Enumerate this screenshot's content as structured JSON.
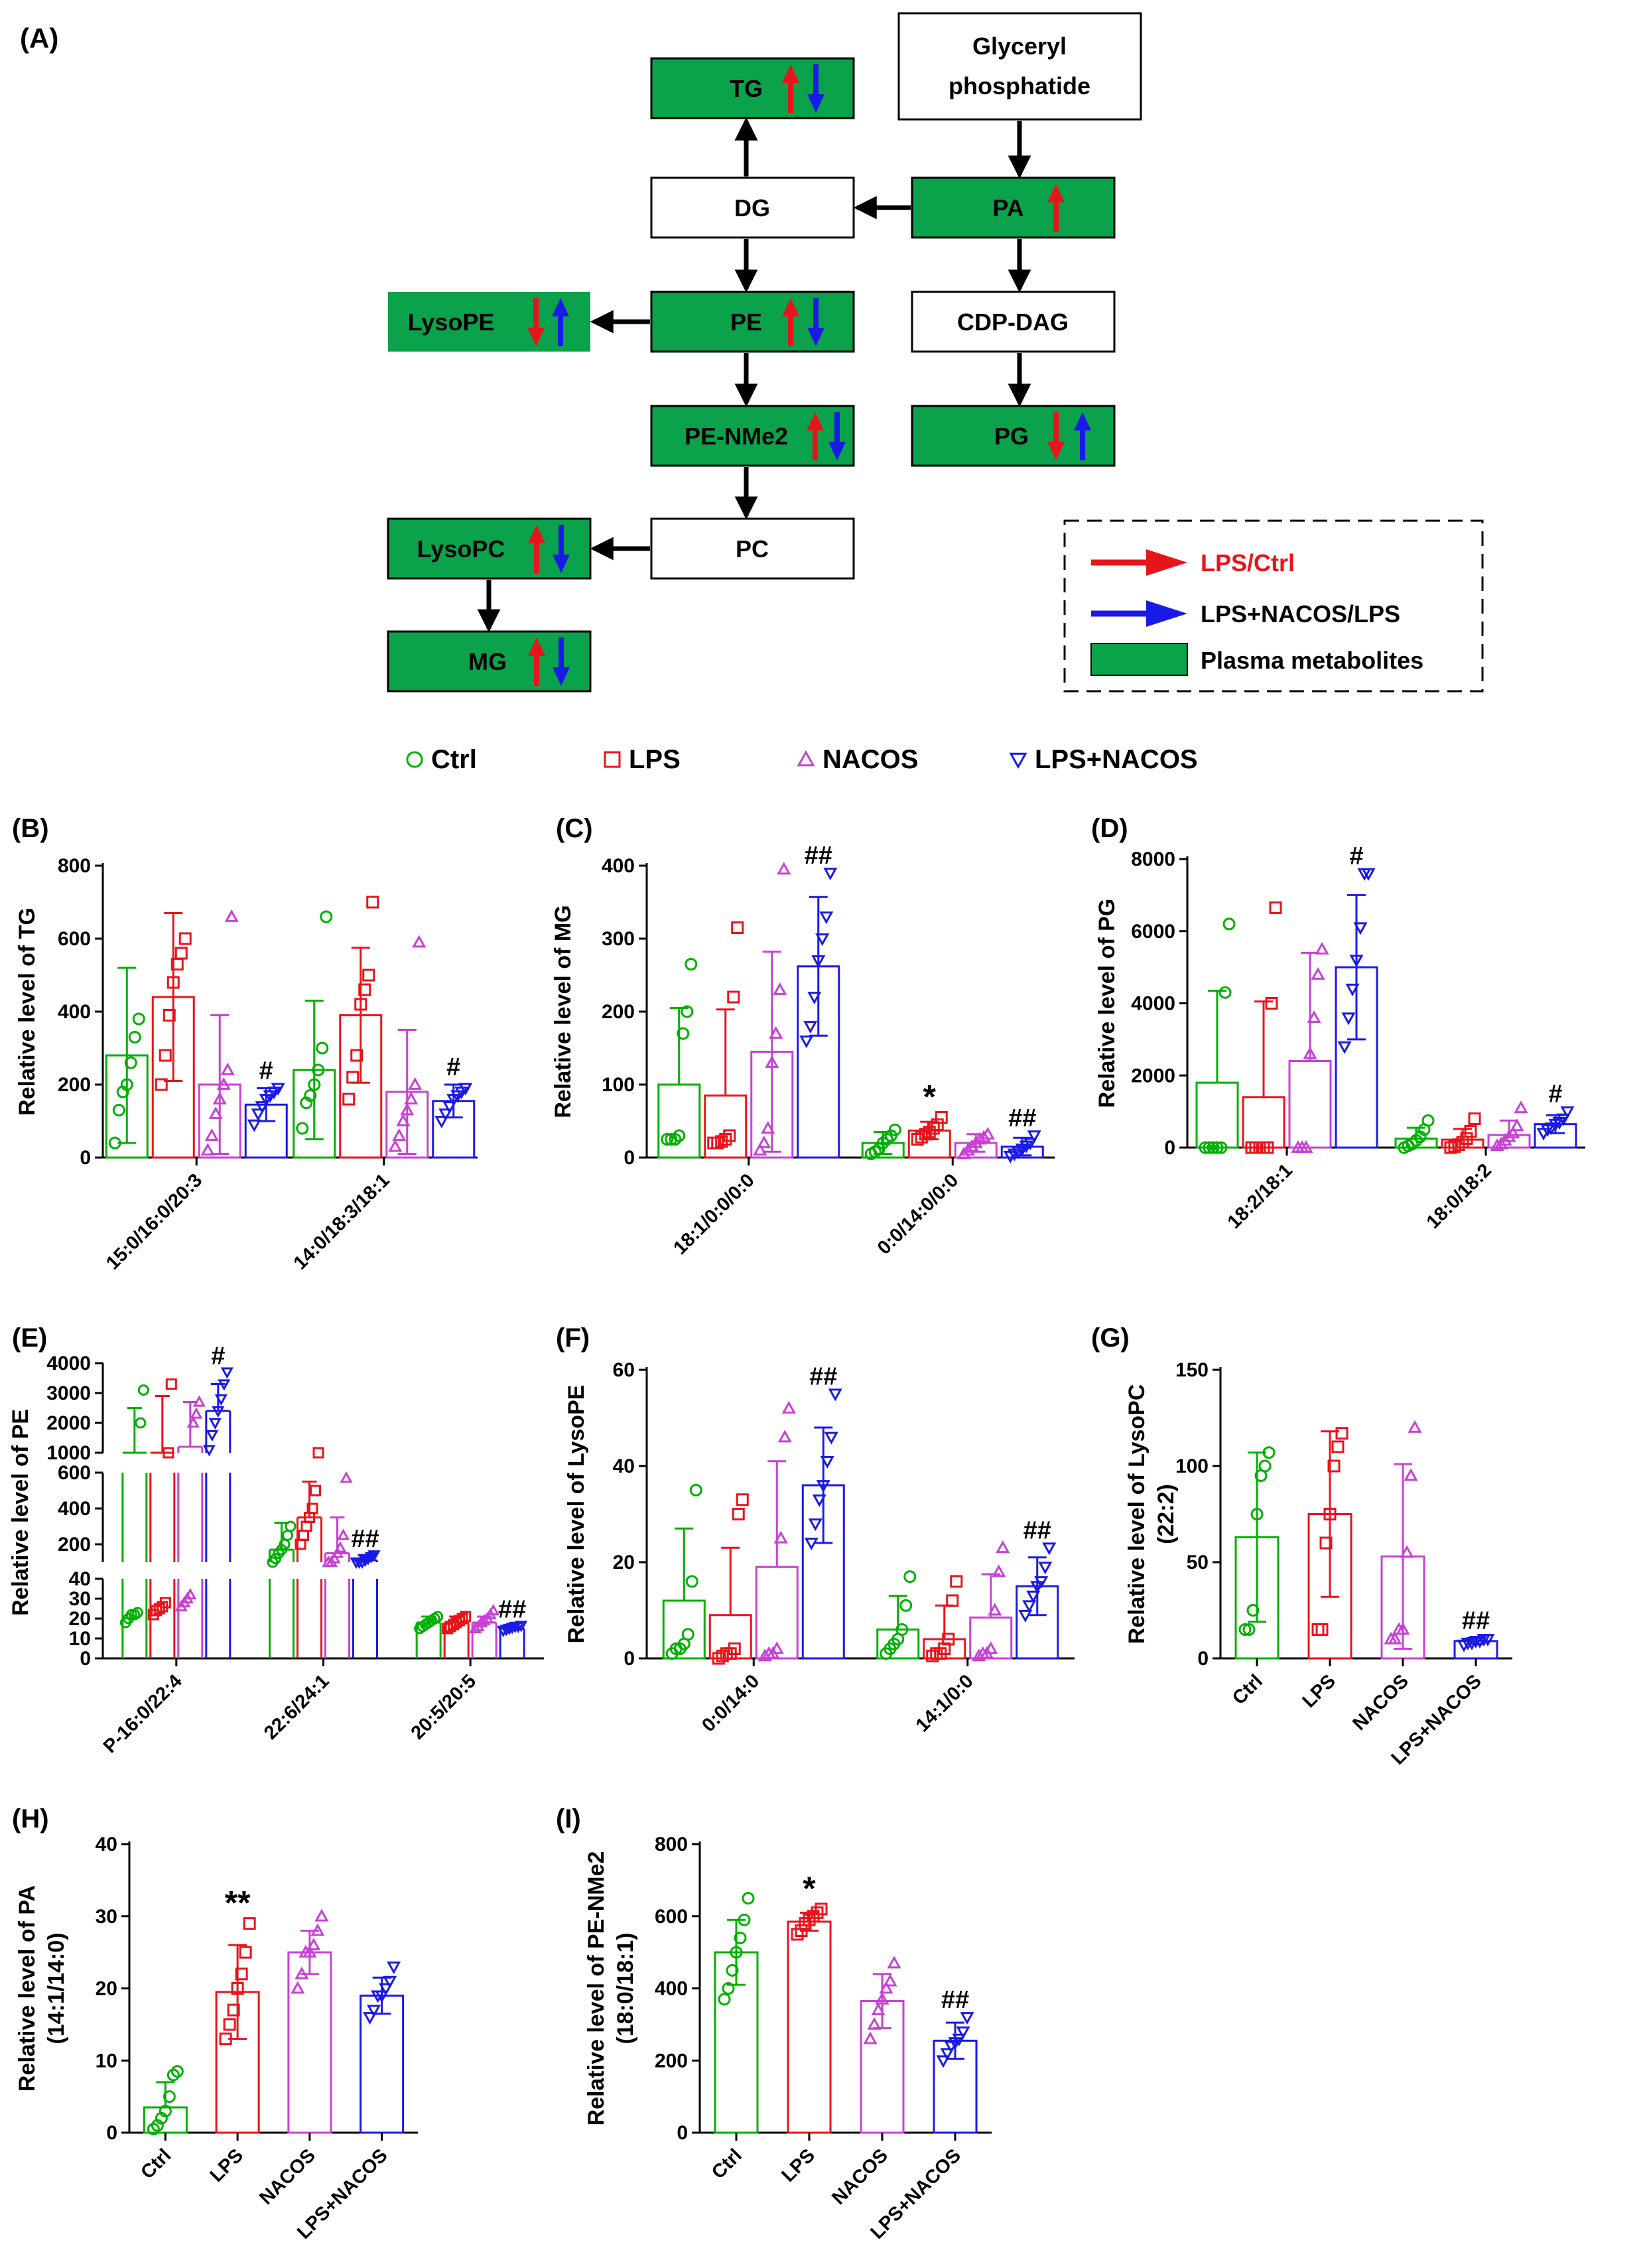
{
  "colors": {
    "green": "#00b000",
    "red": "#e8141b",
    "magenta": "#c940d6",
    "blue": "#1a1ae6",
    "box_green": "#0aa24a",
    "black": "#000000"
  },
  "panel_a": {
    "label": "(A)",
    "boxes": {
      "glyceryl_line1": "Glyceryl",
      "glyceryl_line2": "phosphatide",
      "tg": "TG",
      "dg": "DG",
      "pa": "PA",
      "lysope": "LysoPE",
      "pe": "PE",
      "cdp_dag": "CDP-DAG",
      "pe_nme2": "PE-NMe2",
      "pg": "PG",
      "lysopc": "LysoPC",
      "pc": "PC",
      "mg": "MG"
    },
    "legend": {
      "lps_ctrl": "LPS/Ctrl",
      "lps_nacos": "LPS+NACOS/LPS",
      "plasma": "Plasma metabolites"
    }
  },
  "group_legend": [
    {
      "name": "Ctrl",
      "marker": "circle",
      "color": "#00b000"
    },
    {
      "name": "LPS",
      "marker": "square",
      "color": "#e8141b"
    },
    {
      "name": "NACOS",
      "marker": "triangle-up",
      "color": "#c940d6"
    },
    {
      "name": "LPS+NACOS",
      "marker": "triangle-down",
      "color": "#1a1ae6"
    }
  ],
  "chart_data": [
    {
      "panel": "(B)",
      "type": "bar",
      "ylabel": "Relative level of TG",
      "ylim": [
        0,
        800
      ],
      "yticks": [
        0,
        200,
        400,
        600,
        800
      ],
      "categories": [
        "15:0/16:0/20:3",
        "14:0/18:3/18:1"
      ],
      "series": [
        {
          "name": "Ctrl",
          "values": [
            280,
            240
          ],
          "errors": [
            240,
            190
          ],
          "points": [
            [
              40,
              130,
              180,
              200,
              260,
              330,
              380
            ],
            [
              80,
              150,
              170,
              200,
              240,
              300,
              660
            ]
          ]
        },
        {
          "name": "LPS",
          "values": [
            440,
            390
          ],
          "errors": [
            230,
            185
          ],
          "points": [
            [
              200,
              280,
              390,
              480,
              530,
              560,
              600
            ],
            [
              160,
              220,
              280,
              420,
              460,
              500,
              700
            ]
          ]
        },
        {
          "name": "NACOS",
          "values": [
            200,
            180
          ],
          "errors": [
            190,
            170
          ],
          "points": [
            [
              20,
              60,
              120,
              160,
              200,
              240,
              660
            ],
            [
              30,
              60,
              100,
              130,
              160,
              200,
              590
            ]
          ]
        },
        {
          "name": "LPS+NACOS",
          "values": [
            145,
            155
          ],
          "errors": [
            45,
            45
          ],
          "points": [
            [
              90,
              120,
              140,
              160,
              170,
              180,
              190
            ],
            [
              100,
              120,
              140,
              160,
              170,
              180,
              190
            ]
          ]
        }
      ],
      "annotations": [
        {
          "category": 0,
          "series": 3,
          "text": "#"
        },
        {
          "category": 1,
          "series": 3,
          "text": "#"
        }
      ]
    },
    {
      "panel": "(C)",
      "type": "bar",
      "ylabel": "Relative level of MG",
      "ylim": [
        0,
        400
      ],
      "yticks": [
        0,
        100,
        200,
        300,
        400
      ],
      "categories": [
        "18:1/0:0/0:0",
        "0:0/14:0/0:0"
      ],
      "series": [
        {
          "name": "Ctrl",
          "values": [
            100,
            20
          ],
          "errors": [
            105,
            15
          ],
          "points": [
            [
              25,
              25,
              25,
              30,
              170,
              200,
              265
            ],
            [
              5,
              8,
              12,
              20,
              25,
              30,
              38
            ]
          ]
        },
        {
          "name": "LPS",
          "values": [
            85,
            37
          ],
          "errors": [
            118,
            12
          ],
          "points": [
            [
              20,
              20,
              22,
              25,
              30,
              220,
              315
            ],
            [
              25,
              28,
              32,
              35,
              40,
              45,
              55
            ]
          ]
        },
        {
          "name": "NACOS",
          "values": [
            145,
            20
          ],
          "errors": [
            137,
            12
          ],
          "points": [
            [
              10,
              20,
              40,
              130,
              170,
              230,
              395
            ],
            [
              5,
              10,
              15,
              20,
              25,
              28,
              32
            ]
          ]
        },
        {
          "name": "LPS+NACOS",
          "values": [
            262,
            15
          ],
          "errors": [
            95,
            12
          ],
          "points": [
            [
              160,
              180,
              220,
              270,
              300,
              330,
              390
            ],
            [
              2,
              5,
              8,
              12,
              16,
              20,
              30
            ]
          ]
        }
      ],
      "annotations": [
        {
          "category": 0,
          "series": 3,
          "text": "##"
        },
        {
          "category": 1,
          "series": 1,
          "text": "*"
        },
        {
          "category": 1,
          "series": 3,
          "text": "##"
        }
      ]
    },
    {
      "panel": "(D)",
      "type": "bar",
      "ylabel": "Relative level of PG",
      "ylim": [
        0,
        8000
      ],
      "yticks": [
        0,
        2000,
        4000,
        6000,
        8000
      ],
      "categories": [
        "18:2/18:1",
        "18:0/18:2"
      ],
      "series": [
        {
          "name": "Ctrl",
          "values": [
            1800,
            250
          ],
          "errors": [
            2550,
            300
          ],
          "points": [
            [
              0,
              0,
              0,
              0,
              0,
              4300,
              6200
            ],
            [
              0,
              50,
              100,
              200,
              300,
              500,
              750
            ]
          ]
        },
        {
          "name": "LPS",
          "values": [
            1400,
            220
          ],
          "errors": [
            2650,
            300
          ],
          "points": [
            [
              0,
              0,
              0,
              0,
              0,
              4000,
              6650
            ],
            [
              0,
              30,
              80,
              150,
              250,
              450,
              800
            ]
          ]
        },
        {
          "name": "NACOS",
          "values": [
            2400,
            350
          ],
          "errors": [
            3000,
            400
          ],
          "points": [
            [
              0,
              0,
              0,
              2600,
              3600,
              4800,
              5500
            ],
            [
              50,
              100,
              200,
              300,
              400,
              600,
              1100
            ]
          ]
        },
        {
          "name": "LPS+NACOS",
          "values": [
            5000,
            650
          ],
          "errors": [
            2000,
            250
          ],
          "points": [
            [
              2800,
              3600,
              4400,
              5200,
              6100,
              7600,
              7600
            ],
            [
              400,
              500,
              550,
              650,
              700,
              800,
              1000
            ]
          ]
        }
      ],
      "annotations": [
        {
          "category": 0,
          "series": 3,
          "text": "#"
        },
        {
          "category": 1,
          "series": 3,
          "text": "#"
        }
      ]
    },
    {
      "panel": "(E)",
      "type": "bar",
      "ylabel": "Relative level of PE",
      "broken_axis": true,
      "segments": [
        {
          "ylim": [
            0,
            40
          ],
          "yticks": [
            0,
            10,
            20,
            30,
            40
          ]
        },
        {
          "ylim": [
            100,
            600
          ],
          "yticks": [
            200,
            400,
            600
          ]
        },
        {
          "ylim": [
            1000,
            4000
          ],
          "yticks": [
            1000,
            2000,
            3000,
            4000
          ]
        }
      ],
      "categories": [
        "P-16:0/22:4",
        "22:6/24:1",
        "20:5/20:5"
      ],
      "series": [
        {
          "name": "Ctrl",
          "values": [
            1000,
            170,
            18
          ],
          "errors": [
            1500,
            150,
            3
          ],
          "points": [
            [
              18,
              20,
              22,
              22,
              23,
              2000,
              3100
            ],
            [
              100,
              120,
              150,
              170,
              200,
              250,
              300
            ],
            [
              15,
              16,
              17,
              18,
              19,
              20,
              21
            ]
          ]
        },
        {
          "name": "LPS",
          "values": [
            1000,
            350,
            18
          ],
          "errors": [
            1900,
            200,
            3
          ],
          "points": [
            [
              22,
              24,
              25,
              26,
              28,
              1000,
              3300
            ],
            [
              200,
              250,
              300,
              350,
              400,
              500,
              800
            ],
            [
              15,
              16,
              17,
              18,
              19,
              20,
              21
            ]
          ]
        },
        {
          "name": "NACOS",
          "values": [
            1200,
            150,
            18
          ],
          "errors": [
            1500,
            200,
            3
          ],
          "points": [
            [
              26,
              28,
              30,
              32,
              2000,
              2300,
              2700
            ],
            [
              80,
              100,
              120,
              150,
              180,
              250,
              570
            ],
            [
              15,
              16,
              18,
              19,
              20,
              22,
              24
            ]
          ]
        },
        {
          "name": "LPS+NACOS",
          "values": [
            2400,
            110,
            15
          ],
          "errors": [
            900,
            30,
            1
          ],
          "points": [
            [
              1100,
              1600,
              2000,
              2400,
              2800,
              3300,
              3700
            ],
            [
              80,
              90,
              100,
              110,
              120,
              130,
              140
            ],
            [
              14,
              14.5,
              15,
              15.5,
              16,
              16,
              16.5
            ]
          ]
        }
      ],
      "annotations": [
        {
          "category": 0,
          "series": 3,
          "text": "#"
        },
        {
          "category": 1,
          "series": 3,
          "text": "##"
        },
        {
          "category": 2,
          "series": 3,
          "text": "##"
        }
      ]
    },
    {
      "panel": "(F)",
      "type": "bar",
      "ylabel": "Relative level of LysoPE",
      "ylim": [
        0,
        60
      ],
      "yticks": [
        0,
        20,
        40,
        60
      ],
      "categories": [
        "0:0/14:0",
        "14:1/0:0"
      ],
      "series": [
        {
          "name": "Ctrl",
          "values": [
            12,
            6
          ],
          "errors": [
            15,
            7
          ],
          "points": [
            [
              1,
              2,
              2,
              3,
              5,
              16,
              35
            ],
            [
              1,
              2,
              3,
              4,
              6,
              11,
              17
            ]
          ]
        },
        {
          "name": "LPS",
          "values": [
            9,
            4
          ],
          "errors": [
            14,
            7
          ],
          "points": [
            [
              0,
              0.5,
              1,
              1,
              2,
              30,
              33
            ],
            [
              0.5,
              1,
              1,
              2,
              4,
              12,
              16
            ]
          ]
        },
        {
          "name": "NACOS",
          "values": [
            19,
            8.5
          ],
          "errors": [
            22,
            9
          ],
          "points": [
            [
              0.5,
              1,
              1,
              2,
              25,
              46,
              52
            ],
            [
              0.5,
              1,
              1,
              2,
              10,
              18,
              23
            ]
          ]
        },
        {
          "name": "LPS+NACOS",
          "values": [
            36,
            15
          ],
          "errors": [
            12,
            6
          ],
          "points": [
            [
              24,
              28,
              33,
              36,
              41,
              46,
              55
            ],
            [
              9,
              11,
              13,
              15,
              16,
              19,
              23
            ]
          ]
        }
      ],
      "annotations": [
        {
          "category": 0,
          "series": 3,
          "text": "##"
        },
        {
          "category": 1,
          "series": 3,
          "text": "##"
        }
      ]
    },
    {
      "panel": "(G)",
      "type": "bar",
      "ylabel_line1": "Relative level of LysoPC",
      "ylabel_line2": "(22:2)",
      "ylim": [
        0,
        150
      ],
      "yticks": [
        0,
        50,
        100,
        150
      ],
      "categories": [
        "Ctrl",
        "LPS",
        "NACOS",
        "LPS+NACOS"
      ],
      "values": [
        63,
        75,
        53,
        9
      ],
      "errors": [
        44,
        43,
        48,
        1.5
      ],
      "points": [
        [
          15,
          15,
          25,
          75,
          95,
          100,
          107
        ],
        [
          15,
          15,
          60,
          75,
          100,
          110,
          117
        ],
        [
          10,
          10,
          15,
          15,
          55,
          95,
          120
        ],
        [
          7,
          8,
          8,
          9,
          9,
          10,
          10
        ]
      ],
      "annotations": [
        {
          "category": 3,
          "text": "##"
        }
      ]
    },
    {
      "panel": "(H)",
      "type": "bar",
      "ylabel_line1": "Relative level of PA",
      "ylabel_line2": "(14:1/14:0)",
      "ylim": [
        0,
        40
      ],
      "yticks": [
        0,
        10,
        20,
        30,
        40
      ],
      "categories": [
        "Ctrl",
        "LPS",
        "NACOS",
        "LPS+NACOS"
      ],
      "values": [
        3.5,
        19.5,
        25,
        19
      ],
      "errors": [
        3.5,
        6.5,
        3,
        2.5
      ],
      "points": [
        [
          0.5,
          1,
          2,
          3,
          5,
          8,
          8.5
        ],
        [
          13,
          15,
          17,
          20,
          22,
          25,
          29
        ],
        [
          20,
          22,
          25,
          25,
          26,
          28,
          30
        ],
        [
          16,
          17,
          19,
          19,
          20,
          21,
          23
        ]
      ],
      "annotations": [
        {
          "category": 1,
          "text": "**"
        }
      ]
    },
    {
      "panel": "(I)",
      "type": "bar",
      "ylabel_line1": "Relative level of PE-NMe2",
      "ylabel_line2": "(18:0/18:1)",
      "ylim": [
        0,
        800
      ],
      "yticks": [
        0,
        200,
        400,
        600,
        800
      ],
      "categories": [
        "Ctrl",
        "LPS",
        "NACOS",
        "LPS+NACOS"
      ],
      "values": [
        500,
        585,
        365,
        255
      ],
      "errors": [
        90,
        25,
        75,
        50
      ],
      "points": [
        [
          370,
          400,
          450,
          500,
          540,
          590,
          650
        ],
        [
          550,
          560,
          580,
          590,
          600,
          610,
          620
        ],
        [
          260,
          300,
          340,
          370,
          400,
          420,
          470
        ],
        [
          200,
          220,
          240,
          250,
          260,
          280,
          320
        ]
      ],
      "annotations": [
        {
          "category": 1,
          "text": "*"
        },
        {
          "category": 3,
          "text": "##"
        }
      ]
    }
  ]
}
